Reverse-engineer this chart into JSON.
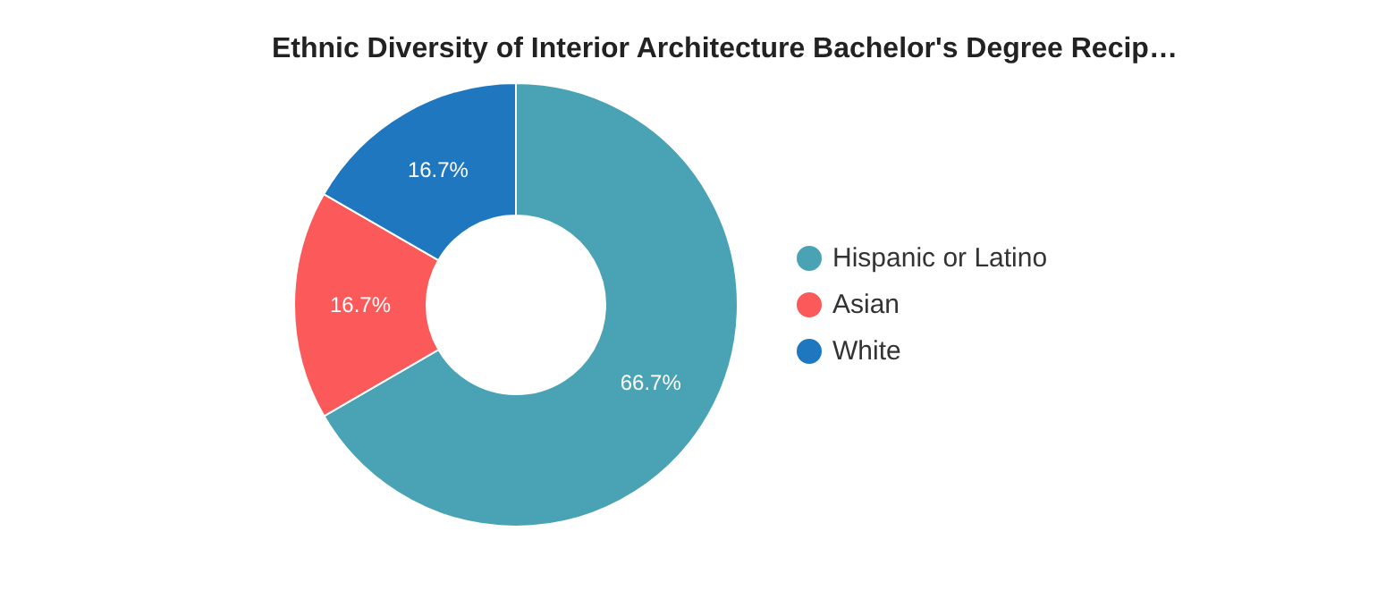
{
  "chart_data": {
    "type": "donut",
    "title": "Ethnic Diversity of Interior Architecture Bachelor's Degree Recip…",
    "categories": [
      "Hispanic or Latino",
      "Asian",
      "White"
    ],
    "values": [
      66.7,
      16.7,
      16.7
    ],
    "colors": [
      "#4aa3b5",
      "#fc5a5a",
      "#1f77c0"
    ],
    "value_labels": [
      "66.7%",
      "16.7%",
      "16.7%"
    ],
    "legend": "right"
  }
}
